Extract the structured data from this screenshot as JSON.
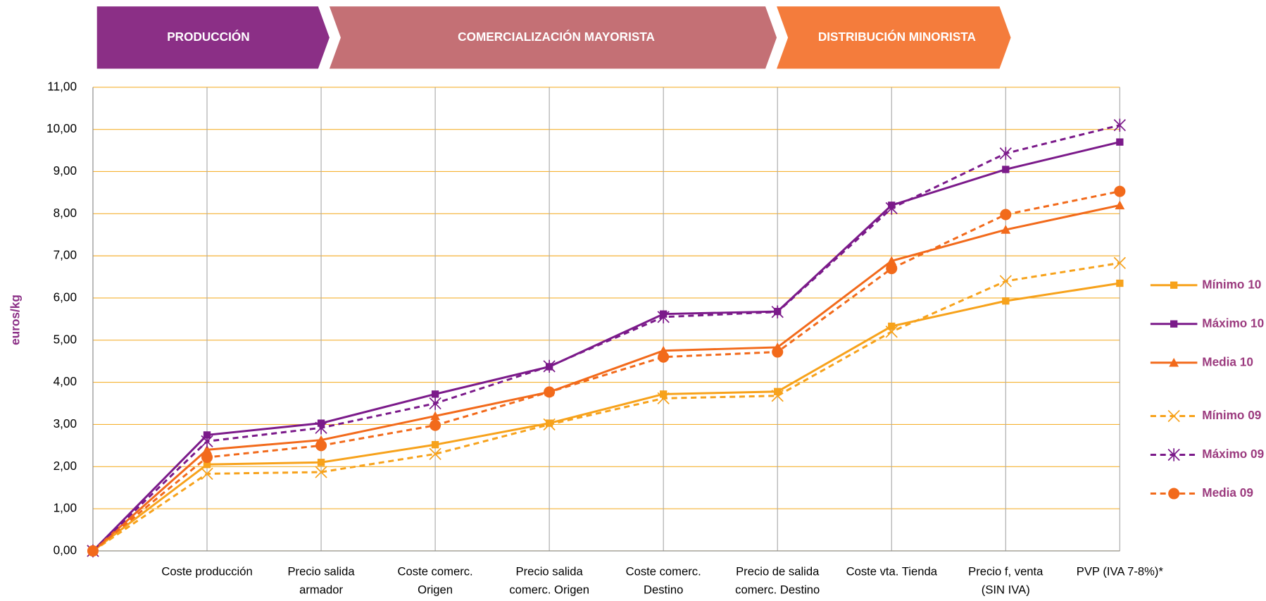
{
  "chart_data": {
    "type": "line",
    "stages": [
      {
        "label": "PRODUCCIÓN",
        "color": "#8b2f86"
      },
      {
        "label": "COMERCIALIZACIÓN MAYORISTA",
        "color": "#c47075"
      },
      {
        "label": "DISTRIBUCIÓN MINORISTA",
        "color": "#f47c3c"
      }
    ],
    "y_label": "euros/kg",
    "categories": [
      null,
      "Coste producción",
      "Precio salida armador",
      "Coste comerc. Origen",
      "Precio salida comerc. Origen",
      "Coste comerc. Destino",
      "Precio de salida comerc. Destino",
      "Coste vta. Tienda",
      "Precio f, venta (SIN IVA)",
      "PVP (IVA 7-8%)*"
    ],
    "series": [
      {
        "name": "Mínimo 10",
        "color": "#f7a21b",
        "dashed": false,
        "marker": "square",
        "values": [
          0,
          2.05,
          2.1,
          2.52,
          3.03,
          3.72,
          3.78,
          5.33,
          5.93,
          6.35
        ]
      },
      {
        "name": "Máximo 10",
        "color": "#7b1a8a",
        "dashed": false,
        "marker": "square",
        "values": [
          0,
          2.75,
          3.03,
          3.72,
          4.37,
          5.62,
          5.68,
          8.2,
          9.05,
          9.7
        ]
      },
      {
        "name": "Media 10",
        "color": "#f26a1b",
        "dashed": false,
        "marker": "triangle",
        "values": [
          0,
          2.4,
          2.63,
          3.2,
          3.77,
          4.75,
          4.83,
          6.88,
          7.62,
          8.2
        ]
      },
      {
        "name": "Mínimo 09",
        "color": "#f7a21b",
        "dashed": true,
        "marker": "x",
        "values": [
          0,
          1.83,
          1.87,
          2.3,
          3.0,
          3.62,
          3.68,
          5.2,
          6.4,
          6.83
        ]
      },
      {
        "name": "Máximo 09",
        "color": "#7b1a8a",
        "dashed": true,
        "marker": "star",
        "values": [
          0,
          2.6,
          2.92,
          3.5,
          4.38,
          5.55,
          5.67,
          8.13,
          9.43,
          10.1
        ]
      },
      {
        "name": "Media 09",
        "color": "#f26a1b",
        "dashed": true,
        "marker": "circle",
        "values": [
          0,
          2.22,
          2.5,
          2.98,
          3.77,
          4.6,
          4.72,
          6.7,
          7.98,
          8.53
        ]
      }
    ],
    "ylim": [
      0,
      11
    ],
    "yticks": [
      {
        "value": 0,
        "label": "0,00"
      },
      {
        "value": 1,
        "label": "1,00"
      },
      {
        "value": 2,
        "label": "2,00"
      },
      {
        "value": 3,
        "label": "3,00"
      },
      {
        "value": 4,
        "label": "4,00"
      },
      {
        "value": 5,
        "label": "5,00"
      },
      {
        "value": 6,
        "label": "6,00"
      },
      {
        "value": 7,
        "label": "7,00"
      },
      {
        "value": 8,
        "label": "8,00"
      },
      {
        "value": 9,
        "label": "9,00"
      },
      {
        "value": 10,
        "label": "10,00"
      },
      {
        "value": 11,
        "label": "11,00"
      }
    ],
    "grid": true,
    "grid_color": "#f5b233",
    "legend": "right"
  }
}
